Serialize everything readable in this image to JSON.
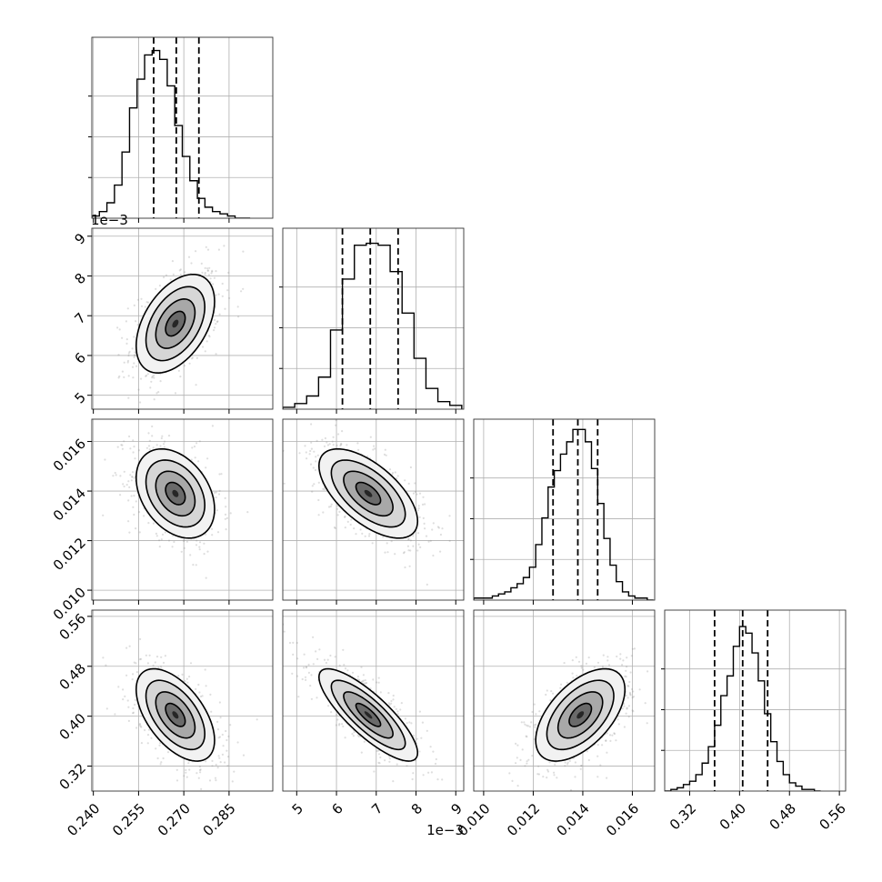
{
  "chart_data": {
    "type": "corner",
    "n_params": 4,
    "params": [
      {
        "ticks": [
          0.24,
          0.255,
          0.27,
          0.285
        ],
        "tick_labels": [
          "0.240",
          "0.255",
          "0.270",
          "0.285"
        ],
        "range": [
          0.2395,
          0.2995
        ],
        "offset_label": ""
      },
      {
        "ticks": [
          5,
          6,
          7,
          8,
          9
        ],
        "tick_labels": [
          "5",
          "6",
          "7",
          "8",
          "9"
        ],
        "range": [
          4.65,
          9.2
        ],
        "offset_label": "1e−3"
      },
      {
        "ticks": [
          0.01,
          0.012,
          0.014,
          0.016
        ],
        "tick_labels": [
          "0.010",
          "0.012",
          "0.014",
          "0.016"
        ],
        "range": [
          0.0096,
          0.0169
        ],
        "offset_label": ""
      },
      {
        "ticks": [
          0.32,
          0.4,
          0.48,
          0.56
        ],
        "tick_labels": [
          "0.32",
          "0.40",
          "0.48",
          "0.56"
        ],
        "range": [
          0.28,
          0.57
        ],
        "offset_label": ""
      }
    ],
    "marginals": [
      {
        "param": 0,
        "bins": [
          0.2395,
          0.242,
          0.2445,
          0.247,
          0.2495,
          0.252,
          0.2545,
          0.257,
          0.2595,
          0.262,
          0.2645,
          0.267,
          0.2695,
          0.272,
          0.2745,
          0.277,
          0.2795,
          0.282,
          0.2845,
          0.287,
          0.2895,
          0.292
        ],
        "counts": [
          1,
          3,
          7,
          15,
          30,
          50,
          63,
          74,
          76,
          72,
          60,
          42,
          28,
          17,
          9,
          5,
          3,
          2,
          1,
          0,
          0
        ],
        "quantiles": [
          0.26,
          0.2675,
          0.275
        ],
        "ylim": [
          0,
          82
        ]
      },
      {
        "param": 1,
        "bins": [
          4.65,
          4.95,
          5.25,
          5.55,
          5.85,
          6.15,
          6.45,
          6.75,
          7.05,
          7.35,
          7.65,
          7.95,
          8.25,
          8.55,
          8.85,
          9.15
        ],
        "counts": [
          1,
          3,
          7,
          17,
          42,
          69,
          87,
          88,
          87,
          73,
          51,
          27,
          11,
          4,
          2
        ],
        "quantiles": [
          6.15,
          6.85,
          7.55
        ],
        "ylim": [
          0,
          96
        ]
      },
      {
        "param": 2,
        "bins": [
          0.0096,
          0.00985,
          0.0101,
          0.01035,
          0.0106,
          0.01085,
          0.0111,
          0.01135,
          0.0116,
          0.01185,
          0.0121,
          0.01235,
          0.0126,
          0.01285,
          0.0131,
          0.01335,
          0.0136,
          0.01385,
          0.0141,
          0.01435,
          0.0146,
          0.01485,
          0.0151,
          0.01535,
          0.0156,
          0.01585,
          0.0161,
          0.01635,
          0.0166,
          0.01685
        ],
        "counts": [
          1,
          1,
          1,
          2,
          3,
          4,
          6,
          8,
          11,
          16,
          27,
          40,
          55,
          63,
          71,
          77,
          83,
          83,
          77,
          64,
          47,
          30,
          17,
          9,
          4,
          2,
          1,
          1,
          0
        ],
        "quantiles": [
          0.0128,
          0.0138,
          0.0146
        ],
        "ylim": [
          0,
          88
        ]
      },
      {
        "param": 3,
        "bins": [
          0.28,
          0.29,
          0.3,
          0.31,
          0.32,
          0.33,
          0.34,
          0.35,
          0.36,
          0.37,
          0.38,
          0.39,
          0.4,
          0.41,
          0.42,
          0.43,
          0.44,
          0.45,
          0.46,
          0.47,
          0.48,
          0.49,
          0.5,
          0.51,
          0.52,
          0.53
        ],
        "counts": [
          0,
          1,
          2,
          4,
          6,
          10,
          17,
          27,
          40,
          58,
          70,
          88,
          100,
          96,
          84,
          67,
          47,
          30,
          18,
          10,
          5,
          3,
          1,
          1,
          0
        ],
        "quantiles": [
          0.36,
          0.405,
          0.445
        ],
        "ylim": [
          0,
          110
        ]
      }
    ],
    "pairs": [
      {
        "x": 0,
        "y": 1,
        "mean": [
          0.2672,
          6.8
        ],
        "sd": [
          0.0065,
          0.62
        ],
        "rho": 0.45
      },
      {
        "x": 0,
        "y": 2,
        "mean": [
          0.2672,
          0.0139
        ],
        "sd": [
          0.0065,
          0.0009
        ],
        "rho": -0.35
      },
      {
        "x": 1,
        "y": 2,
        "mean": [
          6.8,
          0.0139
        ],
        "sd": [
          0.62,
          0.0009
        ],
        "rho": -0.62
      },
      {
        "x": 0,
        "y": 3,
        "mean": [
          0.2672,
          0.402
        ],
        "sd": [
          0.0065,
          0.037
        ],
        "rho": -0.55
      },
      {
        "x": 1,
        "y": 3,
        "mean": [
          6.8,
          0.402
        ],
        "sd": [
          0.62,
          0.037
        ],
        "rho": -0.82
      },
      {
        "x": 2,
        "y": 3,
        "mean": [
          0.0139,
          0.402
        ],
        "sd": [
          0.0009,
          0.037
        ],
        "rho": 0.55
      }
    ],
    "contour_levels_sigma": [
      0.5,
      1.0,
      1.5,
      2.0
    ],
    "grid": true
  }
}
